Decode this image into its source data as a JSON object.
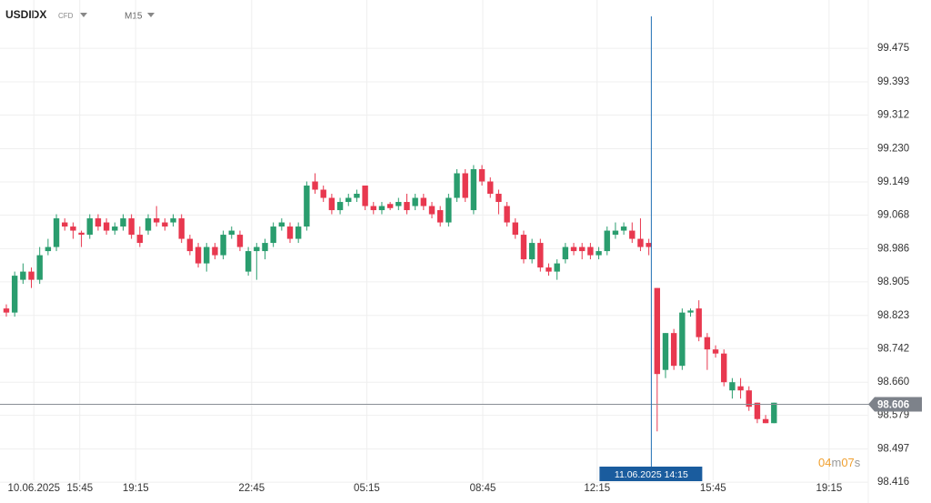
{
  "header": {
    "symbol": "USDIDX",
    "instrument": "CFD",
    "timeframe": "M15"
  },
  "chart_data": {
    "type": "candlestick",
    "x": [
      0,
      1,
      2,
      3,
      4,
      5,
      6,
      7,
      8,
      9,
      10,
      11,
      12,
      13,
      14,
      15,
      16,
      17,
      18,
      19,
      20,
      21,
      22,
      23,
      24,
      25,
      26,
      27,
      28,
      29,
      30,
      31,
      32,
      33,
      34,
      35,
      36,
      37,
      38,
      39,
      40,
      41,
      42,
      43,
      44,
      45,
      46,
      47,
      48,
      49,
      50,
      51,
      52,
      53,
      54,
      55,
      56,
      57,
      58,
      59,
      60,
      61,
      62,
      63,
      64,
      65,
      66,
      67,
      68,
      69,
      70,
      71,
      72,
      73,
      74,
      75,
      76,
      77,
      78,
      79,
      80,
      81,
      82,
      83,
      84,
      85,
      86,
      87,
      88,
      89,
      90,
      91,
      92
    ],
    "open": [
      98.84,
      98.83,
      98.91,
      98.93,
      98.91,
      98.98,
      98.99,
      99.05,
      99.04,
      99.025,
      99.02,
      99.06,
      99.05,
      99.03,
      99.04,
      99.06,
      99.02,
      99.03,
      99.06,
      99.05,
      99.05,
      99.06,
      99.01,
      98.99,
      98.95,
      98.99,
      98.97,
      99.02,
      99.02,
      98.93,
      98.98,
      98.98,
      99.0,
      99.04,
      99.04,
      99.01,
      99.04,
      99.15,
      99.13,
      99.11,
      99.08,
      99.1,
      99.11,
      99.14,
      99.09,
      99.08,
      99.095,
      99.09,
      99.1,
      99.09,
      99.11,
      99.09,
      99.08,
      99.05,
      99.11,
      99.17,
      99.08,
      99.18,
      99.15,
      99.12,
      99.09,
      99.05,
      99.02,
      98.96,
      99.0,
      98.94,
      98.93,
      98.96,
      98.99,
      98.99,
      98.99,
      98.97,
      98.98,
      99.02,
      99.03,
      99.03,
      99.01,
      99.0,
      98.89,
      98.69,
      98.78,
      98.7,
      98.83,
      98.84,
      98.77,
      98.74,
      98.73,
      98.64,
      98.65,
      98.64,
      98.61,
      98.57,
      98.56
    ],
    "high": [
      98.85,
      98.93,
      98.95,
      98.94,
      98.99,
      99.01,
      99.07,
      99.06,
      99.05,
      99.03,
      99.07,
      99.07,
      99.06,
      99.05,
      99.07,
      99.07,
      99.04,
      99.07,
      99.09,
      99.06,
      99.07,
      99.07,
      99.02,
      99.0,
      99.0,
      99.0,
      99.03,
      99.04,
      99.03,
      98.99,
      99.0,
      99.01,
      99.05,
      99.06,
      99.05,
      99.05,
      99.15,
      99.17,
      99.14,
      99.12,
      99.11,
      99.12,
      99.13,
      99.14,
      99.1,
      99.1,
      99.1,
      99.11,
      99.12,
      99.12,
      99.12,
      99.1,
      99.09,
      99.12,
      99.18,
      99.18,
      99.19,
      99.19,
      99.16,
      99.13,
      99.1,
      99.06,
      99.03,
      99.01,
      99.01,
      98.95,
      98.96,
      99.0,
      99.0,
      99.0,
      99.0,
      98.99,
      99.04,
      99.05,
      99.05,
      99.05,
      99.06,
      99.01,
      98.89,
      98.78,
      98.79,
      98.84,
      98.84,
      98.86,
      98.78,
      98.75,
      98.74,
      98.67,
      98.67,
      98.65,
      98.61,
      98.58,
      98.61
    ],
    "low": [
      98.82,
      98.82,
      98.9,
      98.89,
      98.9,
      98.97,
      98.98,
      99.03,
      99.01,
      98.99,
      99.01,
      99.03,
      99.02,
      99.02,
      99.03,
      99.01,
      98.99,
      99.02,
      99.04,
      99.03,
      99.04,
      99.0,
      98.97,
      98.94,
      98.93,
      98.96,
      98.96,
      99.01,
      98.98,
      98.92,
      98.91,
      98.96,
      98.99,
      99.03,
      99.0,
      99.0,
      99.03,
      99.12,
      99.1,
      99.07,
      99.07,
      99.09,
      99.1,
      99.08,
      99.07,
      99.07,
      99.08,
      99.08,
      99.07,
      99.08,
      99.08,
      99.06,
      99.04,
      99.04,
      99.1,
      99.1,
      99.07,
      99.14,
      99.11,
      99.07,
      99.04,
      99.01,
      98.95,
      98.95,
      98.93,
      98.92,
      98.91,
      98.95,
      98.97,
      98.96,
      98.96,
      98.96,
      98.97,
      99.01,
      99.02,
      99.0,
      98.98,
      98.97,
      98.54,
      98.67,
      98.69,
      98.69,
      98.82,
      98.76,
      98.69,
      98.72,
      98.65,
      98.62,
      98.62,
      98.59,
      98.56,
      98.56,
      98.56
    ],
    "close": [
      98.83,
      98.92,
      98.93,
      98.91,
      98.97,
      98.99,
      99.06,
      99.04,
      99.03,
      99.02,
      99.06,
      99.04,
      99.03,
      99.04,
      99.06,
      99.02,
      99.0,
      99.06,
      99.05,
      99.04,
      99.06,
      99.01,
      98.98,
      98.95,
      98.99,
      98.97,
      99.02,
      99.03,
      98.99,
      98.98,
      98.99,
      99.0,
      99.04,
      99.05,
      99.01,
      99.04,
      99.14,
      99.13,
      99.11,
      99.08,
      99.1,
      99.11,
      99.12,
      99.09,
      99.08,
      99.09,
      99.085,
      99.1,
      99.08,
      99.11,
      99.09,
      99.07,
      99.05,
      99.11,
      99.17,
      99.11,
      99.18,
      99.15,
      99.12,
      99.1,
      99.05,
      99.02,
      98.96,
      99.0,
      98.94,
      98.93,
      98.95,
      98.99,
      98.98,
      98.98,
      98.97,
      98.98,
      99.03,
      99.03,
      99.04,
      99.01,
      98.99,
      98.99,
      98.68,
      98.78,
      98.7,
      98.83,
      98.835,
      98.77,
      98.74,
      98.73,
      98.66,
      98.66,
      98.64,
      98.6,
      98.57,
      98.56,
      98.61
    ],
    "up_color": "#2a9d6e",
    "down_color": "#e8384f",
    "xlim": [
      -0.76,
      103.3
    ],
    "xticks": [
      {
        "value": 3.3,
        "label": "10.06.2025"
      },
      {
        "value": 8.8,
        "label": "15:45"
      },
      {
        "value": 15.5,
        "label": "19:15"
      },
      {
        "value": 29.4,
        "label": "22:45"
      },
      {
        "value": 43.2,
        "label": "05:15"
      },
      {
        "value": 57.1,
        "label": "08:45"
      },
      {
        "value": 70.8,
        "label": "12:15"
      },
      {
        "value": 84.7,
        "label": "15:45"
      },
      {
        "value": 98.6,
        "label": "19:15"
      }
    ],
    "ylim": [
      98.394,
      99.553
    ],
    "yticks": [
      99.475,
      99.393,
      99.312,
      {
        "value": 99.23,
        "label": "99.230"
      },
      99.149,
      99.068,
      98.986,
      98.905,
      98.823,
      98.742,
      {
        "value": 98.66,
        "label": "98.660"
      },
      98.579,
      98.497,
      98.416
    ],
    "grid": true,
    "last_price": 98.606,
    "crosshair": {
      "x": 77.3,
      "label": "11.06.2025 14:15"
    },
    "countdown": [
      "04",
      "m",
      "07",
      "s"
    ]
  }
}
